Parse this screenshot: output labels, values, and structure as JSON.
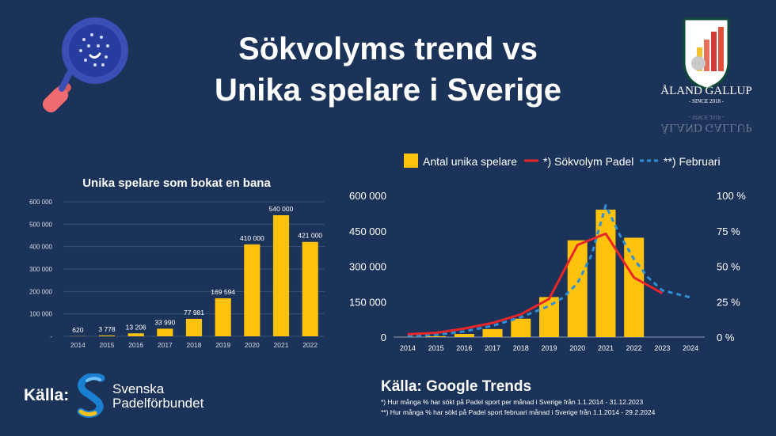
{
  "header": {
    "title_line1": "Sökvolyms trend vs",
    "title_line2": "Unika spelare i Sverige"
  },
  "logo": {
    "name": "ÅLAND GALLUP",
    "tagline": "- SINCE 2018 -"
  },
  "footer": {
    "left_label": "Källa:",
    "org_line1": "Svenska",
    "org_line2": "Padelförbundet",
    "right_title": "Källa: Google Trends",
    "note1": "*) Hur många % har sökt på Padel sport per månad i Sverige från 1.1.2014 - 31.12.2023",
    "note2": "**) Hur många % har sökt på Padel sport februari månad i Sverige från 1.1.2014 - 29.2.2024"
  },
  "colors": {
    "background": "#1b3358",
    "bar": "#fec20c",
    "line": "#e8262a",
    "dashed": "#2f8fd6"
  },
  "chart_data": [
    {
      "type": "bar",
      "title": "Unika spelare som bokat en bana",
      "categories": [
        "2014",
        "2015",
        "2016",
        "2017",
        "2018",
        "2019",
        "2020",
        "2021",
        "2022"
      ],
      "values": [
        620,
        3778,
        13206,
        33990,
        77981,
        169594,
        410000,
        540000,
        421000
      ],
      "value_labels": [
        "620",
        "3 778",
        "13 206",
        "33 990",
        "77 981",
        "169 594",
        "410 000",
        "540 000",
        "421 000"
      ],
      "ylim": [
        0,
        600000
      ],
      "yticks": [
        0,
        100000,
        200000,
        300000,
        400000,
        500000,
        600000
      ],
      "ytick_labels": [
        "-",
        "100 000",
        "200 000",
        "300 000",
        "400 000",
        "500 000",
        "600 000"
      ]
    },
    {
      "type": "bar+line",
      "legend": [
        "Antal unika spelare",
        "*) Sökvolym Padel",
        "**) Februari"
      ],
      "categories": [
        "2014",
        "2015",
        "2016",
        "2017",
        "2018",
        "2019",
        "2020",
        "2021",
        "2022",
        "2023",
        "2024"
      ],
      "series": [
        {
          "name": "Antal unika spelare",
          "type": "bar",
          "axis": "left",
          "values": [
            620,
            3778,
            13206,
            33990,
            77981,
            169594,
            410000,
            540000,
            421000,
            null,
            null
          ]
        },
        {
          "name": "*) Sökvolym Padel",
          "type": "line",
          "axis": "right",
          "x": [
            0,
            1,
            2,
            3,
            4,
            5,
            6,
            7,
            8,
            9
          ],
          "values": [
            2,
            3,
            6,
            10,
            16,
            27,
            65,
            73,
            42,
            31
          ]
        },
        {
          "name": "**) Februari",
          "type": "dashed-line",
          "axis": "right",
          "x": [
            0,
            1,
            2,
            3,
            4,
            5,
            5.5,
            6,
            6.5,
            7,
            7.5,
            8,
            8.5,
            9,
            10
          ],
          "values": [
            1,
            1.5,
            4,
            8,
            14,
            22,
            28,
            38,
            58,
            93,
            72,
            55,
            42,
            33,
            28
          ]
        }
      ],
      "left_ylim": [
        0,
        600000
      ],
      "left_yticks": [
        0,
        150000,
        300000,
        450000,
        600000
      ],
      "left_ytick_labels": [
        "0",
        "150 000",
        "300 000",
        "450 000",
        "600 000"
      ],
      "right_ylim": [
        0,
        100
      ],
      "right_yticks": [
        0,
        25,
        50,
        75,
        100
      ],
      "right_ytick_labels": [
        "0 %",
        "25 %",
        "50 %",
        "75 %",
        "100 %"
      ]
    }
  ]
}
